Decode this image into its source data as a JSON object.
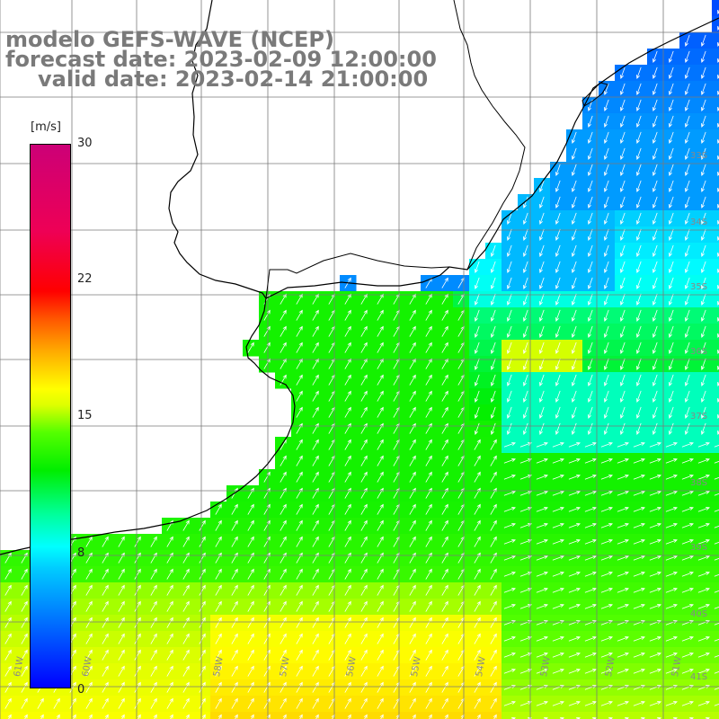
{
  "titles": {
    "line1": "modelo GEFS-WAVE (NCEP)",
    "line2": "forecast date: 2023-02-09 12:00:00",
    "line3": "valid date: 2023-02-14 21:00:00"
  },
  "colorbar": {
    "unit": "[m/s]",
    "min": 0,
    "max": 30,
    "labels": [
      "30",
      "22",
      "15",
      "8",
      "0"
    ],
    "label_values": [
      30,
      22,
      15,
      8,
      0
    ]
  },
  "axis_labels": {
    "bottom": [
      "61W",
      "60W",
      "58W",
      "57W",
      "56W",
      "55W",
      "54W",
      "53W",
      "52W",
      "51W"
    ],
    "right": [
      "33S",
      "34S",
      "35S",
      "36S",
      "37S",
      "38S",
      "39S",
      "40S",
      "41S"
    ]
  },
  "colors": {
    "land": "#ffffff",
    "grid": "#7a7a7a",
    "coast": "#000000",
    "arrow": "#ffffff"
  }
}
